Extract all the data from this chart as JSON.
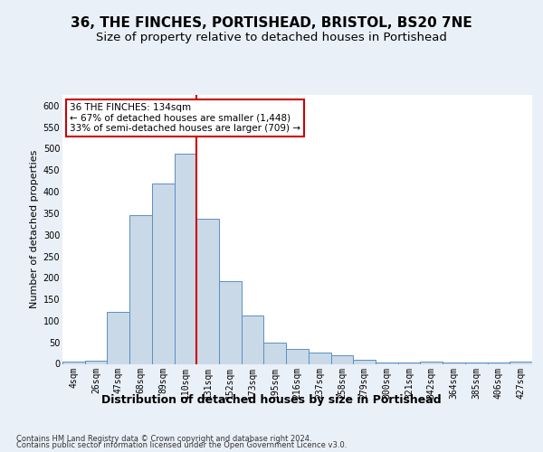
{
  "title_line1": "36, THE FINCHES, PORTISHEAD, BRISTOL, BS20 7NE",
  "title_line2": "Size of property relative to detached houses in Portishead",
  "xlabel": "Distribution of detached houses by size in Portishead",
  "ylabel": "Number of detached properties",
  "footnote1": "Contains HM Land Registry data © Crown copyright and database right 2024.",
  "footnote2": "Contains public sector information licensed under the Open Government Licence v3.0.",
  "categories": [
    "4sqm",
    "26sqm",
    "47sqm",
    "68sqm",
    "89sqm",
    "110sqm",
    "131sqm",
    "152sqm",
    "173sqm",
    "195sqm",
    "216sqm",
    "237sqm",
    "258sqm",
    "279sqm",
    "300sqm",
    "321sqm",
    "342sqm",
    "364sqm",
    "385sqm",
    "406sqm",
    "427sqm"
  ],
  "values": [
    6,
    8,
    120,
    345,
    420,
    488,
    338,
    193,
    112,
    50,
    35,
    26,
    20,
    10,
    3,
    3,
    5,
    4,
    4,
    3,
    5
  ],
  "bar_color": "#c9d9e8",
  "bar_edge_color": "#5a8fc2",
  "marker_bin_index": 5,
  "marker_color": "#cc0000",
  "annotation_title": "36 THE FINCHES: 134sqm",
  "annotation_line1": "← 67% of detached houses are smaller (1,448)",
  "annotation_line2": "33% of semi-detached houses are larger (709) →",
  "ylim": [
    0,
    625
  ],
  "yticks": [
    0,
    50,
    100,
    150,
    200,
    250,
    300,
    350,
    400,
    450,
    500,
    550,
    600
  ],
  "background_color": "#eaf0f8",
  "plot_background": "#ffffff",
  "grid_color": "#ffffff",
  "title_fontsize": 11,
  "subtitle_fontsize": 9.5,
  "ylabel_fontsize": 8,
  "xlabel_fontsize": 9,
  "tick_fontsize": 7,
  "annotation_fontsize": 7.5,
  "footnote_fontsize": 6,
  "annotation_box_color": "#ffffff",
  "annotation_box_edge": "#cc0000"
}
